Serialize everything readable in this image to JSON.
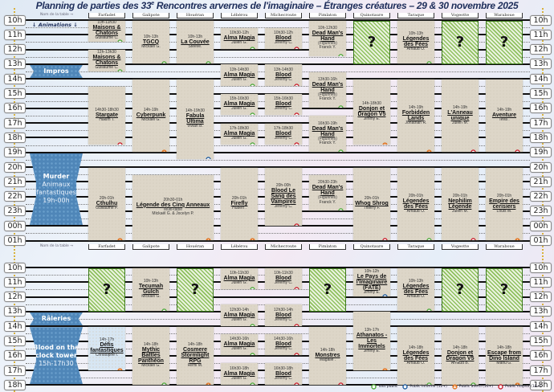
{
  "title": {
    "pre": "Planning de parties des 33",
    "sup": "e",
    "post": " Rencontres arvernes de l'imaginaire – Étranges créatures – 29 & 30 novembre 2025"
  },
  "labels": {
    "table_hint": "Nom de la table →",
    "animations": "↓ Animations ↓"
  },
  "tables": [
    "Farfadet",
    "Galipote",
    "Houéran",
    "Lébérou",
    "Michecroute",
    "Pimlaton",
    "Quinotaure",
    "Taraque",
    "Vogeotte",
    "Waraboue"
  ],
  "colors": {
    "tout_public": "#4ea83a",
    "informe": "#1f5c9e",
    "averti": "#e0782a",
    "majeur": "#c81e2c",
    "title": "#1d2d5a",
    "animation": "#4f86b8",
    "placeholder": "#8fc05f"
  },
  "legend": [
    {
      "key": "tout_public",
      "label": "Tout public",
      "shape": "circle"
    },
    {
      "key": "informe",
      "label": "Public informé (12+)",
      "shape": "circle"
    },
    {
      "key": "averti",
      "label": "Public averti (16+)",
      "shape": "triangle"
    },
    {
      "key": "majeur",
      "label": "Public majeur (18+)",
      "shape": "circle"
    }
  ],
  "days": [
    {
      "hours": [
        "10h",
        "11h",
        "12h",
        "13h",
        "14h",
        "15h",
        "16h",
        "17h",
        "18h",
        "19h",
        "20h",
        "21h",
        "22h",
        "23h",
        "00h",
        "01h"
      ],
      "animations": [
        {
          "title": "Impros",
          "slot": "13h-14h",
          "shape": "banner"
        },
        {
          "title": "Murder",
          "subtitle": "Animaux fantastiques",
          "time": "19h-00h",
          "shape": "hourglass"
        }
      ],
      "events": [
        {
          "table": 0,
          "time": "10h-11h30",
          "title": "Maisons & Chatons",
          "gm": "Guillaume C.",
          "rating": "tout_public"
        },
        {
          "table": 0,
          "time": "12h-13h30",
          "title": "Maisons & Chatons",
          "gm": "Guillaume C.",
          "rating": "tout_public"
        },
        {
          "table": 0,
          "time": "14h30-18h30",
          "title": "Stargate",
          "gm": "Hakim T.",
          "rating": "majeur"
        },
        {
          "table": 0,
          "time": "20h-01h",
          "title": "Cthulhu",
          "gm": "Guillaume F.",
          "rating": "averti"
        },
        {
          "table": 1,
          "time": "10h-13h",
          "title": "TGCQ",
          "gm": "Mickaël G.",
          "rating": "tout_public"
        },
        {
          "table": 1,
          "time": "14h-19h",
          "title": "Cyberpunk",
          "gm": "Mickaël G.",
          "rating": "averti"
        },
        {
          "table": 1,
          "span": 2,
          "time": "20h30-01h",
          "title": "Légende des Cinq Anneaux",
          "note": "Multi-table",
          "gm": "Mickaël G. & Jocelyn P.",
          "rating": "averti"
        },
        {
          "table": 2,
          "time": "10h-13h",
          "title": "La Couvée",
          "gm": "Steeve.",
          "rating": "tout_public"
        },
        {
          "table": 2,
          "time": "14h-19h30",
          "title": "Fabula Ultima",
          "gm": "Vivian B.",
          "rating": "informe"
        },
        {
          "table": 3,
          "time": "10h30-12h",
          "title": "Alma Magia",
          "gm": "Julien G.",
          "rating": "tout_public"
        },
        {
          "table": 3,
          "time": "13h-14h30",
          "title": "Alma Magia",
          "gm": "Julien G.",
          "rating": "tout_public"
        },
        {
          "table": 3,
          "time": "15h-16h30",
          "title": "Alma Magia",
          "gm": "Julien G.",
          "rating": "tout_public"
        },
        {
          "table": 3,
          "time": "17h-18h30",
          "title": "Alma Magia",
          "gm": "Julien G.",
          "rating": "tout_public"
        },
        {
          "table": 3,
          "time": "20h-01h",
          "title": "Firefly",
          "gm": "Hubert .",
          "rating": "averti"
        },
        {
          "table": 4,
          "time": "10h30-12h",
          "title": "Blood",
          "gm": "Jérémy C.",
          "rating": "majeur"
        },
        {
          "table": 4,
          "time": "13h-14h30",
          "title": "Blood",
          "gm": "Jérémy C.",
          "rating": "majeur"
        },
        {
          "table": 4,
          "time": "15h-16h30",
          "title": "Blood",
          "gm": "Jérémy C.",
          "rating": "majeur"
        },
        {
          "table": 4,
          "time": "17h-18h30",
          "title": "Blood",
          "gm": "Jérémy C.",
          "rating": "majeur"
        },
        {
          "table": 4,
          "time": "20h-00h",
          "title": "Blood Le Sang des Vampires",
          "gm": "Jérémy C.",
          "rating": "majeur"
        },
        {
          "table": 5,
          "time": "10h-12h30",
          "title": "Dead Man's Hand",
          "note": "(Figurines)",
          "gm": "Franck Y.",
          "rating": "tout_public"
        },
        {
          "table": 5,
          "time": "13h30-16h",
          "title": "Dead Man's Hand",
          "note": "(Figurines)",
          "gm": "Franck Y.",
          "rating": "tout_public"
        },
        {
          "table": 5,
          "time": "16h30-19h",
          "title": "Dead Man's Hand",
          "note": "(Figurines)",
          "gm": "Franck Y.",
          "rating": "tout_public"
        },
        {
          "table": 5,
          "time": "20h30-23h",
          "title": "Dead Man's Hand",
          "note": "(Figurines)",
          "gm": "Franck Y.",
          "rating": "tout_public"
        },
        {
          "table": 6,
          "slot": "10h-13h",
          "placeholder": "?"
        },
        {
          "table": 6,
          "time": "14h-18h30",
          "title": "Donjon et Dragon V5",
          "gm": "Jimmy E.",
          "rating": "averti"
        },
        {
          "table": 6,
          "time": "20h-01h",
          "title": "Whog Shrog",
          "gm": "Thierry F.",
          "rating": "majeur"
        },
        {
          "table": 7,
          "time": "10h-13h",
          "title": "Légendes des Fées",
          "gm": "Arnaud O.",
          "rating": "tout_public"
        },
        {
          "table": 7,
          "time": "14h-19h",
          "title": "Forbidden Lands",
          "gm": "Jonathan R.",
          "rating": "averti"
        },
        {
          "table": 7,
          "time": "20h-01h",
          "title": "Légendes des Fées",
          "gm": "Arnaud O.",
          "rating": "tout_public"
        },
        {
          "table": 8,
          "slot": "10h-13h",
          "placeholder": "?"
        },
        {
          "table": 8,
          "time": "14h-19h",
          "title": "L'Anneau unique",
          "gm": "Julien M.",
          "rating": "majeur"
        },
        {
          "table": 8,
          "time": "20h-01h",
          "title": "Nephilim Légende",
          "gm": "Julien M.",
          "rating": "majeur"
        },
        {
          "table": 9,
          "slot": "10h-13h",
          "placeholder": "?"
        },
        {
          "table": 9,
          "time": "14h-19h",
          "title": "Aventure",
          "gm": "Teva .",
          "rating": "majeur"
        },
        {
          "table": 9,
          "time": "20h-01h",
          "title": "Empire des cerisiers",
          "gm": "Louis M.",
          "rating": "averti"
        }
      ]
    },
    {
      "hours": [
        "10h",
        "11h",
        "12h",
        "13h",
        "14h",
        "15h",
        "16h",
        "17h",
        "18h"
      ],
      "animations": [
        {
          "title": "Râleries",
          "slot": "13h-14h",
          "shape": "banner"
        },
        {
          "title": "Blood on the clock tower",
          "time": "15h-17h30",
          "slot": "14h-18h",
          "shape": "hourglass"
        }
      ],
      "events": [
        {
          "table": 0,
          "slot": "10h-13h",
          "placeholder": "?"
        },
        {
          "table": 0,
          "time": "14h-17h",
          "title": "Défis fantastiques",
          "gm": "Christophe I.",
          "rating": "averti",
          "style": "blue"
        },
        {
          "table": 1,
          "time": "10h-13h",
          "title": "Tecumah Gulch",
          "gm": "Mickaël G.",
          "rating": "tout_public"
        },
        {
          "table": 1,
          "time": "14h-18h",
          "title": "Mythic Battles Panthéon",
          "gm": "Mickaël G.",
          "rating": "tout_public"
        },
        {
          "table": 2,
          "slot": "10h-13h",
          "placeholder": "?"
        },
        {
          "table": 2,
          "time": "14h-18h",
          "title": "Cosmere Stormlight RPG",
          "gm": "Rémi M.",
          "rating": "averti"
        },
        {
          "table": 3,
          "time": "10h-11h30",
          "title": "Alma Magia",
          "gm": "Julien G.",
          "rating": "tout_public"
        },
        {
          "table": 3,
          "time": "12h30-14h",
          "title": "Alma Magia",
          "gm": "Julien G.",
          "rating": "tout_public"
        },
        {
          "table": 3,
          "time": "14h30-16h",
          "title": "Alma Magia",
          "gm": "Julien G.",
          "rating": "tout_public"
        },
        {
          "table": 3,
          "time": "16h30-18h",
          "title": "Alma Magia",
          "gm": "Julien G.",
          "rating": "tout_public"
        },
        {
          "table": 4,
          "time": "10h-11h30",
          "title": "Blood",
          "gm": "Jérémy C.",
          "rating": "majeur"
        },
        {
          "table": 4,
          "time": "12h30-14h",
          "title": "Blood",
          "gm": "Jérémy C.",
          "rating": "majeur"
        },
        {
          "table": 4,
          "time": "14h30-16h",
          "title": "Blood",
          "gm": "Jérémy C.",
          "rating": "majeur"
        },
        {
          "table": 4,
          "time": "16h30-18h",
          "title": "Blood",
          "gm": "Jérémy C.",
          "rating": "majeur"
        },
        {
          "table": 5,
          "slot": "10h-13h",
          "placeholder": "?"
        },
        {
          "table": 5,
          "time": "14h-18h",
          "title": "Monstres",
          "gm": "Magalie .",
          "rating": "majeur"
        },
        {
          "table": 6,
          "time": "10h-12h",
          "title": "Le Pays de l'Imaginaire (FATE)",
          "gm": "Jimmy E.",
          "rating": "informe"
        },
        {
          "table": 6,
          "time": "13h-17h",
          "title": "Athanatos - Les Immortels",
          "gm": "Jimmy E.",
          "rating": "averti"
        },
        {
          "table": 7,
          "time": "10h-13h",
          "title": "Légendes des Fées",
          "gm": "Arnaud O.",
          "rating": "tout_public"
        },
        {
          "table": 7,
          "time": "14h-18h",
          "title": "Légendes des Fées",
          "gm": "Arnaud O.",
          "rating": "tout_public"
        },
        {
          "table": 8,
          "slot": "10h-13h",
          "placeholder": "?"
        },
        {
          "table": 8,
          "time": "14h-18h",
          "title": "Donjon et Dragon V5",
          "gm": "Arnaud B.",
          "rating": "tout_public"
        },
        {
          "table": 9,
          "slot": "10h-13h",
          "placeholder": "?"
        },
        {
          "table": 9,
          "time": "14h-18h",
          "title": "Escape from Dino Island",
          "gm": "Manu G.",
          "rating": "averti"
        }
      ]
    }
  ]
}
